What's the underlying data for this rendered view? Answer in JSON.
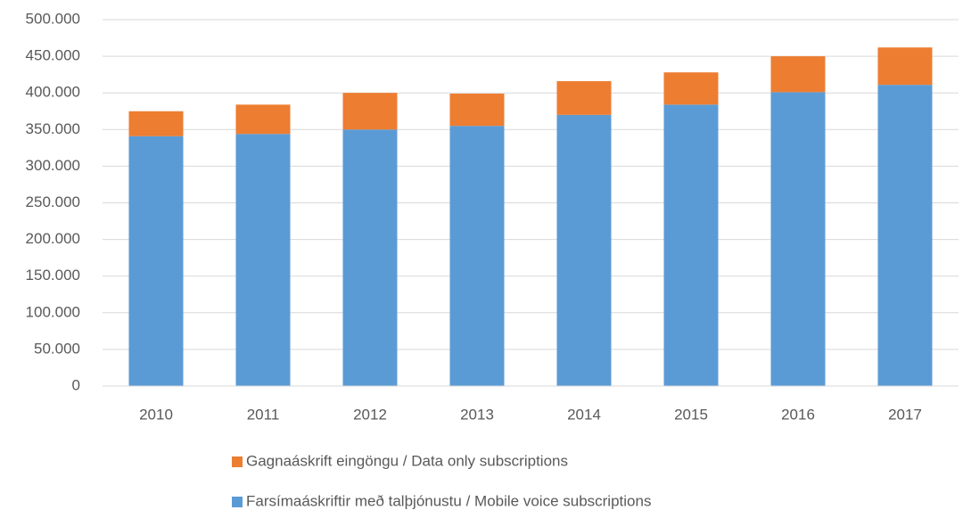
{
  "chart_data": {
    "type": "stacked_bar",
    "categories": [
      "2010",
      "2011",
      "2012",
      "2013",
      "2014",
      "2015",
      "2016",
      "2017"
    ],
    "series": [
      {
        "name": "Farsímaáskriftir með talþjónustu / Mobile voice subscriptions",
        "color": "#5b9bd5",
        "values": [
          341000,
          344000,
          350000,
          355000,
          370000,
          384000,
          401000,
          411000
        ]
      },
      {
        "name": "Gagnaáskrift eingöngu / Data only subscriptions",
        "color": "#ed7d31",
        "values": [
          34000,
          40000,
          50000,
          44000,
          46000,
          44000,
          49000,
          51000
        ]
      }
    ],
    "ylim": [
      0,
      500000
    ],
    "yticks": [
      0,
      {
        "value": 50000,
        "label": "50.000"
      },
      {
        "value": 100000,
        "label": "100.000"
      },
      {
        "value": 150000,
        "label": "150.000"
      },
      {
        "value": 200000,
        "label": "200.000"
      },
      {
        "value": 250000,
        "label": "250.000"
      },
      {
        "value": 300000,
        "label": "300.000"
      },
      {
        "value": 350000,
        "label": "350.000"
      },
      {
        "value": 400000,
        "label": "400.000"
      },
      {
        "value": 450000,
        "label": "450.000"
      },
      {
        "value": 500000,
        "label": "500.000"
      }
    ],
    "grid": true
  }
}
